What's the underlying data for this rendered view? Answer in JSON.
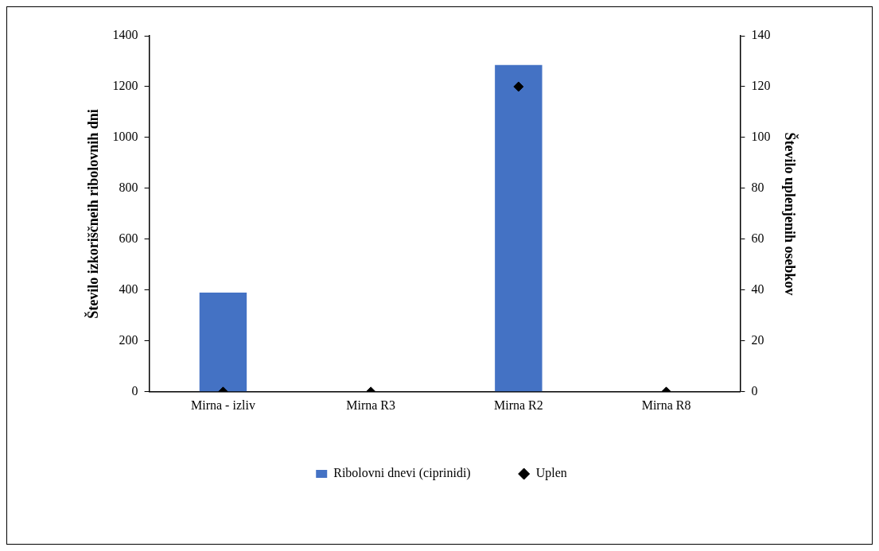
{
  "chart_data": {
    "type": "bar",
    "categories": [
      "Mirna - izliv",
      "Mirna R3",
      "Mirna R2",
      "Mirna R8"
    ],
    "ylabel": "Število izkoriščneih ribolovnih dni",
    "y2label": "Število uplenjenih osebkov",
    "series": [
      {
        "name": "Ribolovni dnevi (ciprinidi)",
        "color": "#4472c4",
        "values": [
          390,
          null,
          1285,
          null
        ]
      },
      {
        "name": "Uplen",
        "type": "scatter",
        "color": "#000000",
        "axis": "y2",
        "marker": "diamond",
        "values": [
          0,
          0,
          120,
          0
        ]
      }
    ],
    "ylim": [
      0,
      1400
    ],
    "yticks": [
      0,
      200,
      400,
      600,
      800,
      1000,
      1200,
      1400
    ],
    "y2lim": [
      0,
      140
    ],
    "y2ticks": [
      0,
      20,
      40,
      60,
      80,
      100,
      120,
      140
    ],
    "grid": false,
    "legend": "bottom"
  }
}
